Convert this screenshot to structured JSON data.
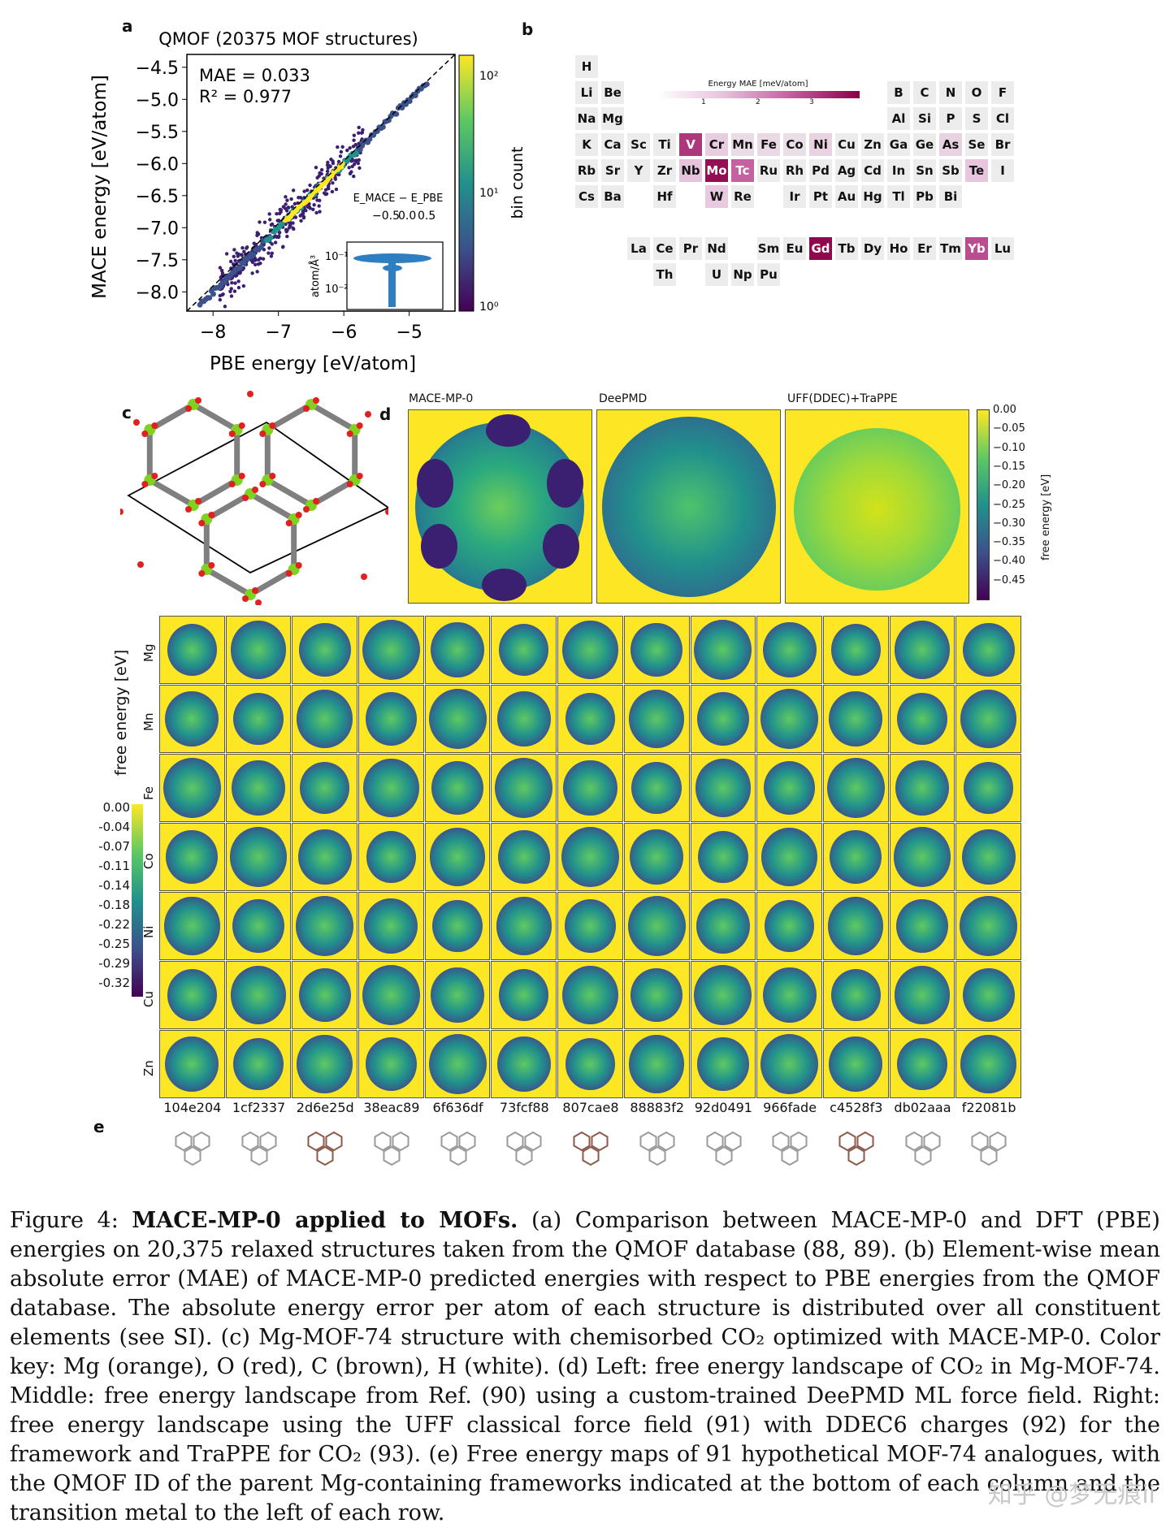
{
  "panel_letters": {
    "a": "a",
    "b": "b",
    "c": "c",
    "d": "d",
    "e": "e"
  },
  "chart_data": [
    {
      "type": "scatter",
      "title": "QMOF (20375 MOF structures)",
      "xlabel": "PBE energy [eV/atom]",
      "ylabel": "MACE energy [eV/atom]",
      "xticks": [
        "−8",
        "−7",
        "−6",
        "−5"
      ],
      "yticks": [
        "−4.5",
        "−5.0",
        "−5.5",
        "−6.0",
        "−6.5",
        "−7.0",
        "−7.5",
        "−8.0"
      ],
      "xlim": [
        -8.4,
        -4.3
      ],
      "ylim": [
        -8.3,
        -4.3
      ],
      "annotations": [
        "MAE = 0.033",
        "R² = 0.977"
      ],
      "colorbar": {
        "label": "bin count",
        "ticks": [
          "10²",
          "10¹",
          "10⁰"
        ],
        "scale": "log"
      },
      "parity_line": true,
      "points_sample": [
        [
          -8.2,
          -8.15
        ],
        [
          -7.6,
          -7.55
        ],
        [
          -7.2,
          -7.1
        ],
        [
          -6.8,
          -6.75
        ],
        [
          -6.4,
          -6.4
        ],
        [
          -6.0,
          -6.0
        ],
        [
          -5.6,
          -5.6
        ],
        [
          -5.2,
          -5.15
        ],
        [
          -4.8,
          -4.75
        ]
      ],
      "inset": {
        "xlabel": "E_MACE − E_PBE",
        "ylabel": "atom/Å³",
        "xticks": [
          "−0.5",
          "0.0",
          "0.5"
        ],
        "yticks": [
          "10⁻¹",
          "10⁻²"
        ]
      }
    },
    {
      "type": "heatmap",
      "title": "Energy MAE [meV/atom]",
      "colorbar_ticks": [
        "1",
        "2",
        "3"
      ],
      "elements": [
        {
          "s": "H",
          "r": 0,
          "c": 0,
          "v": 0.1
        },
        {
          "s": "Li",
          "r": 1,
          "c": 0,
          "v": 0.1
        },
        {
          "s": "Be",
          "r": 1,
          "c": 1,
          "v": 0.1
        },
        {
          "s": "B",
          "r": 1,
          "c": 12,
          "v": 0.1
        },
        {
          "s": "C",
          "r": 1,
          "c": 13,
          "v": 0.1
        },
        {
          "s": "N",
          "r": 1,
          "c": 14,
          "v": 0.1
        },
        {
          "s": "O",
          "r": 1,
          "c": 15,
          "v": 0.1
        },
        {
          "s": "F",
          "r": 1,
          "c": 16,
          "v": 0.1
        },
        {
          "s": "Na",
          "r": 2,
          "c": 0,
          "v": 0.1
        },
        {
          "s": "Mg",
          "r": 2,
          "c": 1,
          "v": 0.1
        },
        {
          "s": "Al",
          "r": 2,
          "c": 12,
          "v": 0.1
        },
        {
          "s": "Si",
          "r": 2,
          "c": 13,
          "v": 0.1
        },
        {
          "s": "P",
          "r": 2,
          "c": 14,
          "v": 0.1
        },
        {
          "s": "S",
          "r": 2,
          "c": 15,
          "v": 0.1
        },
        {
          "s": "Cl",
          "r": 2,
          "c": 16,
          "v": 0.1
        },
        {
          "s": "K",
          "r": 3,
          "c": 0,
          "v": 0.1
        },
        {
          "s": "Ca",
          "r": 3,
          "c": 1,
          "v": 0.1
        },
        {
          "s": "Sc",
          "r": 3,
          "c": 2,
          "v": 0.1
        },
        {
          "s": "Ti",
          "r": 3,
          "c": 3,
          "v": 0.1
        },
        {
          "s": "V",
          "r": 3,
          "c": 4,
          "v": 3.2
        },
        {
          "s": "Cr",
          "r": 3,
          "c": 5,
          "v": 1.0
        },
        {
          "s": "Mn",
          "r": 3,
          "c": 6,
          "v": 0.5
        },
        {
          "s": "Fe",
          "r": 3,
          "c": 7,
          "v": 0.6
        },
        {
          "s": "Co",
          "r": 3,
          "c": 8,
          "v": 0.4
        },
        {
          "s": "Ni",
          "r": 3,
          "c": 9,
          "v": 0.8
        },
        {
          "s": "Cu",
          "r": 3,
          "c": 10,
          "v": 0.1
        },
        {
          "s": "Zn",
          "r": 3,
          "c": 11,
          "v": 0.1
        },
        {
          "s": "Ga",
          "r": 3,
          "c": 12,
          "v": 0.1
        },
        {
          "s": "Ge",
          "r": 3,
          "c": 13,
          "v": 0.1
        },
        {
          "s": "As",
          "r": 3,
          "c": 14,
          "v": 0.8
        },
        {
          "s": "Se",
          "r": 3,
          "c": 15,
          "v": 0.1
        },
        {
          "s": "Br",
          "r": 3,
          "c": 16,
          "v": 0.1
        },
        {
          "s": "Rb",
          "r": 4,
          "c": 0,
          "v": 0.1
        },
        {
          "s": "Sr",
          "r": 4,
          "c": 1,
          "v": 0.1
        },
        {
          "s": "Y",
          "r": 4,
          "c": 2,
          "v": 0.1
        },
        {
          "s": "Zr",
          "r": 4,
          "c": 3,
          "v": 0.1
        },
        {
          "s": "Nb",
          "r": 4,
          "c": 4,
          "v": 1.3
        },
        {
          "s": "Mo",
          "r": 4,
          "c": 5,
          "v": 3.8
        },
        {
          "s": "Tc",
          "r": 4,
          "c": 6,
          "v": 2.6
        },
        {
          "s": "Ru",
          "r": 4,
          "c": 7,
          "v": 0.1
        },
        {
          "s": "Rh",
          "r": 4,
          "c": 8,
          "v": 0.1
        },
        {
          "s": "Pd",
          "r": 4,
          "c": 9,
          "v": 0.1
        },
        {
          "s": "Ag",
          "r": 4,
          "c": 10,
          "v": 0.1
        },
        {
          "s": "Cd",
          "r": 4,
          "c": 11,
          "v": 0.1
        },
        {
          "s": "In",
          "r": 4,
          "c": 12,
          "v": 0.1
        },
        {
          "s": "Sn",
          "r": 4,
          "c": 13,
          "v": 0.1
        },
        {
          "s": "Sb",
          "r": 4,
          "c": 14,
          "v": 0.1
        },
        {
          "s": "Te",
          "r": 4,
          "c": 15,
          "v": 1.2
        },
        {
          "s": "I",
          "r": 4,
          "c": 16,
          "v": 0.1
        },
        {
          "s": "Cs",
          "r": 5,
          "c": 0,
          "v": 0.1
        },
        {
          "s": "Ba",
          "r": 5,
          "c": 1,
          "v": 0.1
        },
        {
          "s": "Hf",
          "r": 5,
          "c": 3,
          "v": 0.1
        },
        {
          "s": "W",
          "r": 5,
          "c": 5,
          "v": 1.1
        },
        {
          "s": "Re",
          "r": 5,
          "c": 6,
          "v": 0.1
        },
        {
          "s": "Ir",
          "r": 5,
          "c": 8,
          "v": 0.1
        },
        {
          "s": "Pt",
          "r": 5,
          "c": 9,
          "v": 0.1
        },
        {
          "s": "Au",
          "r": 5,
          "c": 10,
          "v": 0.1
        },
        {
          "s": "Hg",
          "r": 5,
          "c": 11,
          "v": 0.1
        },
        {
          "s": "Tl",
          "r": 5,
          "c": 12,
          "v": 0.1
        },
        {
          "s": "Pb",
          "r": 5,
          "c": 13,
          "v": 0.1
        },
        {
          "s": "Bi",
          "r": 5,
          "c": 14,
          "v": 0.1
        },
        {
          "s": "La",
          "r": 7,
          "c": 2,
          "v": 0.1
        },
        {
          "s": "Ce",
          "r": 7,
          "c": 3,
          "v": 0.1
        },
        {
          "s": "Pr",
          "r": 7,
          "c": 4,
          "v": 0.1
        },
        {
          "s": "Nd",
          "r": 7,
          "c": 5,
          "v": 0.1
        },
        {
          "s": "Sm",
          "r": 7,
          "c": 7,
          "v": 0.1
        },
        {
          "s": "Eu",
          "r": 7,
          "c": 8,
          "v": 0.1
        },
        {
          "s": "Gd",
          "r": 7,
          "c": 9,
          "v": 3.9
        },
        {
          "s": "Tb",
          "r": 7,
          "c": 10,
          "v": 0.1
        },
        {
          "s": "Dy",
          "r": 7,
          "c": 11,
          "v": 0.1
        },
        {
          "s": "Ho",
          "r": 7,
          "c": 12,
          "v": 0.1
        },
        {
          "s": "Er",
          "r": 7,
          "c": 13,
          "v": 0.1
        },
        {
          "s": "Tm",
          "r": 7,
          "c": 14,
          "v": 0.1
        },
        {
          "s": "Yb",
          "r": 7,
          "c": 15,
          "v": 2.9
        },
        {
          "s": "Lu",
          "r": 7,
          "c": 16,
          "v": 0.1
        },
        {
          "s": "Th",
          "r": 8,
          "c": 3,
          "v": 0.1
        },
        {
          "s": "U",
          "r": 8,
          "c": 5,
          "v": 0.1
        },
        {
          "s": "Np",
          "r": 8,
          "c": 6,
          "v": 0.1
        },
        {
          "s": "Pu",
          "r": 8,
          "c": 7,
          "v": 0.1
        }
      ]
    }
  ],
  "panel_d": {
    "titles": [
      "MACE-MP-0",
      "DeePMD",
      "UFF(DDEC)+TraPPE"
    ],
    "colorbar_label": "free energy [eV]",
    "colorbar_ticks": [
      "0.00",
      "−0.05",
      "−0.10",
      "−0.15",
      "−0.20",
      "−0.25",
      "−0.30",
      "−0.35",
      "−0.40",
      "−0.45"
    ]
  },
  "panel_e": {
    "ylabel": "free energy [eV]",
    "colorbar_ticks": [
      "0.00",
      "-0.04",
      "-0.07",
      "-0.11",
      "-0.14",
      "-0.18",
      "-0.22",
      "-0.25",
      "-0.29",
      "-0.32"
    ],
    "rows": [
      "Mg",
      "Mn",
      "Fe",
      "Co",
      "Ni",
      "Cu",
      "Zn"
    ],
    "cols": [
      "104e204",
      "1cf2337",
      "2d6e25d",
      "38eac89",
      "6f636df",
      "73fcf88",
      "807cae8",
      "88883f2",
      "92d0491",
      "966fade",
      "c4528f3",
      "db02aaa",
      "f22081b"
    ]
  },
  "caption": {
    "label": "Figure 4:",
    "bold": "MACE-MP-0 applied to MOFs.",
    "text": "(a) Comparison between MACE-MP-0 and DFT (PBE) energies on 20,375 relaxed structures taken from the QMOF database (88, 89). (b) Element-wise mean absolute error (MAE) of MACE-MP-0 predicted energies with respect to PBE energies from the QMOF database. The absolute energy error per atom of each structure is distributed over all constituent elements (see SI). (c) Mg-MOF-74 structure with chemisorbed CO₂ optimized with MACE-MP-0. Color key: Mg (orange), O (red), C (brown), H (white). (d) Left: free energy landscape of CO₂ in Mg-MOF-74. Middle: free energy landscape from Ref. (90) using a custom-trained DeePMD ML force field. Right: free energy landscape using the UFF classical force field (91) with DDEC6 charges (92) for the framework and TraPPE for CO₂ (93). (e) Free energy maps of 91 hypothetical MOF-74 analogues, with the QMOF ID of the parent Mg-containing frameworks indicated at the bottom of each column and the transition metal to the left of each row."
  },
  "watermark": "知乎 @梦无痕ii",
  "colors": {
    "viridis_dark": "#440154",
    "viridis_mid": "#21918c",
    "viridis_light": "#fde725",
    "mae_low": "#ececec",
    "mae_high": "#8b0046"
  }
}
